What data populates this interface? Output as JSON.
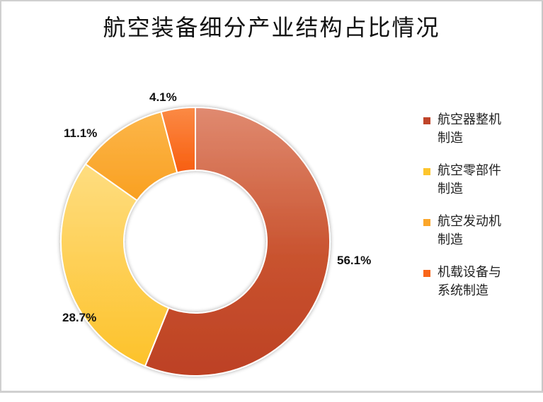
{
  "title": "航空装备细分产业结构占比情况",
  "chart_data": {
    "type": "pie",
    "variant": "donut",
    "title": "航空装备细分产业结构占比情况",
    "categories": [
      "航空器整机制造",
      "航空零部件制造",
      "航空发动机制造",
      "机载设备与系统制造"
    ],
    "values": [
      56.1,
      28.7,
      11.1,
      4.1
    ],
    "unit": "%",
    "data_labels": [
      "56.1%",
      "28.7%",
      "11.1%",
      "4.1%"
    ],
    "colors": [
      "#c0452a",
      "#fdc52d",
      "#fba62a",
      "#f9661a"
    ],
    "legend_position": "right"
  },
  "legend": [
    {
      "line1": "航空器整机",
      "line2": "制造",
      "color": "#c0452a"
    },
    {
      "line1": "航空零部件",
      "line2": "制造",
      "color": "#fdc52d"
    },
    {
      "line1": "航空发动机",
      "line2": "制造",
      "color": "#fba62a"
    },
    {
      "line1": "机载设备与",
      "line2": "系统制造",
      "color": "#f9661a"
    }
  ],
  "labels": {
    "s0": "56.1%",
    "s1": "28.7%",
    "s2": "11.1%",
    "s3": "4.1%"
  }
}
